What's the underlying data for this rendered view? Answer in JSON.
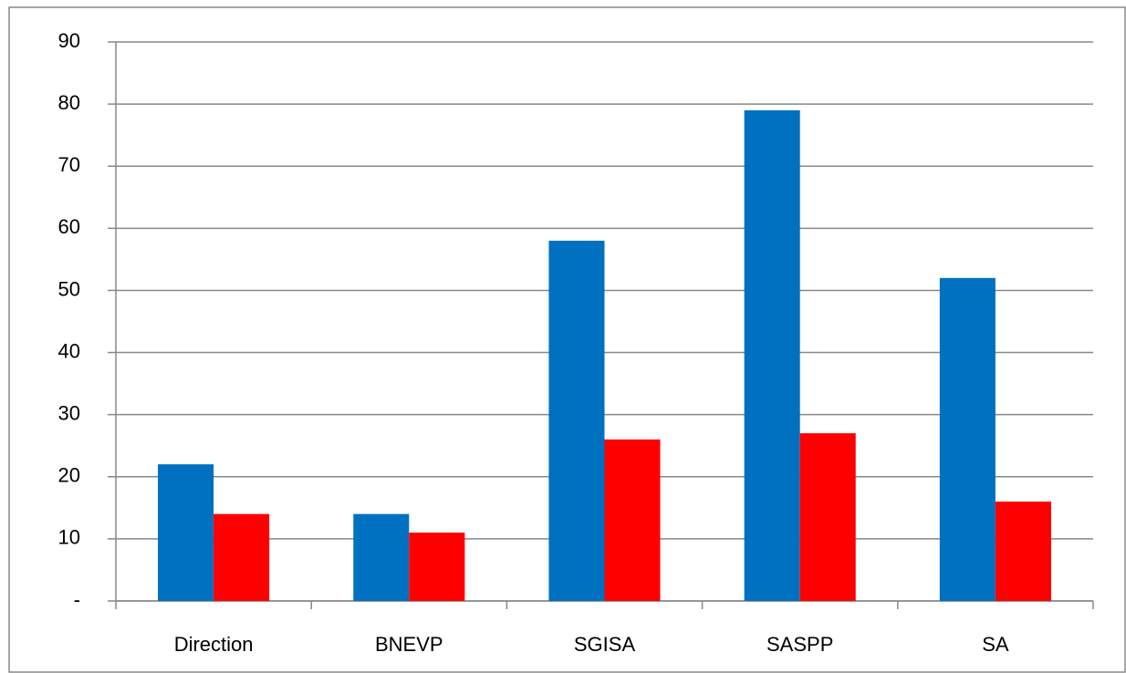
{
  "chart_data": {
    "type": "bar",
    "categories": [
      "Direction",
      "BNEVP",
      "SGISA",
      "SASPP",
      "SA"
    ],
    "series": [
      {
        "color": "#0070c0",
        "values": [
          22,
          14,
          58,
          79,
          52
        ]
      },
      {
        "color": "#ff0000",
        "values": [
          14,
          11,
          26,
          27,
          16
        ]
      }
    ],
    "ylim": [
      0,
      90
    ],
    "yticks": [
      {
        "value": 0,
        "label": "-"
      },
      10,
      20,
      30,
      40,
      50,
      60,
      70,
      80,
      90
    ],
    "grid": true
  }
}
